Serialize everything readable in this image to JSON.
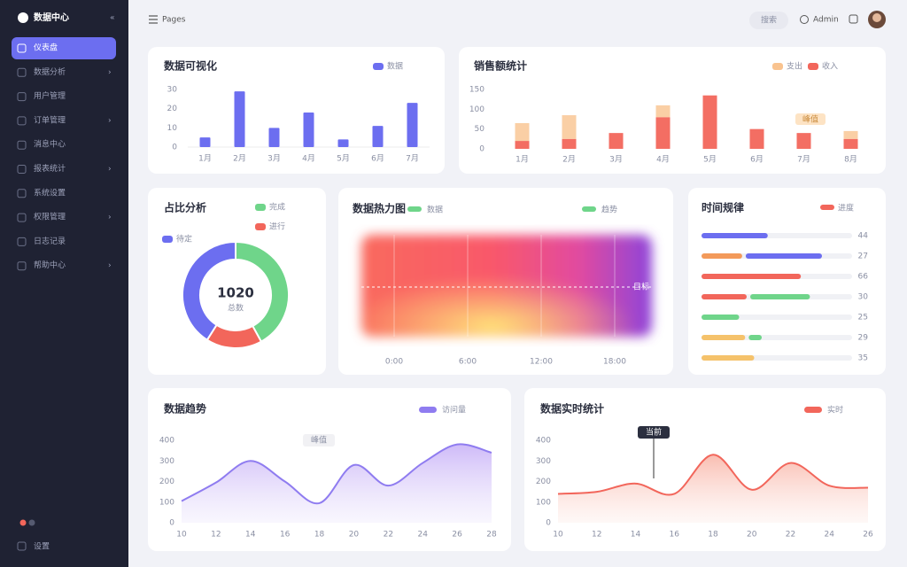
{
  "sidebar": {
    "brand": "数据中心",
    "items": [
      "仪表盘",
      "数据分析",
      "用户管理",
      "订单管理",
      "消息中心",
      "报表统计",
      "系统设置",
      "权限管理",
      "日志记录",
      "帮助中心"
    ],
    "footer": "设置"
  },
  "header": {
    "title": "Pages",
    "search": "搜索",
    "user": "Admin"
  },
  "bar_card": {
    "type": "bar",
    "title": "数据可视化",
    "legend": "数据",
    "categories": [
      "1月",
      "2月",
      "3月",
      "4月",
      "5月",
      "6月",
      "7月"
    ],
    "values": [
      5,
      29,
      10,
      18,
      4,
      11,
      23
    ],
    "color": "#6c6ef0",
    "ylim": [
      0,
      30
    ],
    "yticks": [
      0,
      10,
      20,
      30
    ]
  },
  "stack_card": {
    "type": "stacked-bar",
    "title": "销售额统计",
    "categories": [
      "1月",
      "2月",
      "3月",
      "4月",
      "5月",
      "6月",
      "7月",
      "8月"
    ],
    "series": [
      {
        "name": "收入",
        "color": "#f2665b",
        "values": [
          20,
          25,
          40,
          80,
          135,
          50,
          40,
          25
        ]
      },
      {
        "name": "支出",
        "color": "#f9c38f",
        "values": [
          45,
          60,
          0,
          30,
          0,
          0,
          0,
          20
        ]
      }
    ],
    "ylim": [
      0,
      150
    ],
    "yticks": [
      0,
      50,
      100,
      150
    ],
    "annotation": "峰值"
  },
  "donut_card": {
    "type": "donut",
    "title": "占比分析",
    "total": "1020",
    "total_label": "总数",
    "series": [
      {
        "name": "完成",
        "color": "#6fd58a",
        "value": 42
      },
      {
        "name": "进行",
        "color": "#f2665b",
        "value": 17
      },
      {
        "name": "待定",
        "color": "#6c6ef0",
        "value": 41
      }
    ]
  },
  "heat_card": {
    "title": "数据热力图",
    "legend": [
      "数据",
      "趋势"
    ],
    "target_label": "目标",
    "categories": [
      "0:00",
      "6:00",
      "12:00",
      "18:00"
    ]
  },
  "hbar_card": {
    "type": "hbar",
    "title": "时间规律",
    "legend": "进度",
    "xlim": [
      0,
      100
    ],
    "segments": [
      {
        "values": [
          44,
          27,
          66,
          30,
          25,
          29,
          35
        ],
        "colors": [
          "#6c6ef0",
          "#f39a5a",
          "#f2665b",
          "#f2665b",
          "#6fd58a",
          "#f5c26b",
          "#f5c26b"
        ]
      },
      {
        "values": [
          0,
          53,
          0,
          42,
          0,
          11,
          0
        ],
        "colors": [
          "#6c6ef0",
          "#6c6ef0",
          "#f39a5a",
          "#6fd58a",
          "#6fd58a",
          "#6fd58a",
          "#6fd58a"
        ]
      }
    ]
  },
  "area_card": {
    "type": "area",
    "title": "数据趋势",
    "legend": "访问量",
    "color": "#8f7cf0",
    "annotation": "峰值",
    "categories": [
      "10",
      "12",
      "14",
      "16",
      "18",
      "20",
      "22",
      "24",
      "26",
      "28"
    ],
    "values": [
      105,
      195,
      300,
      200,
      95,
      280,
      180,
      290,
      380,
      340
    ],
    "ylim": [
      0,
      400
    ],
    "yticks": [
      0,
      100,
      200,
      300,
      400
    ]
  },
  "area_card2": {
    "type": "area",
    "title": "数据实时统计",
    "legend": "实时",
    "color": "#f2665b",
    "annotation": "当前",
    "categories": [
      "10",
      "12",
      "14",
      "16",
      "18",
      "20",
      "22",
      "24",
      "26"
    ],
    "values": [
      140,
      150,
      190,
      140,
      330,
      160,
      290,
      180,
      170
    ],
    "ylim": [
      0,
      400
    ],
    "yticks": [
      0,
      100,
      200,
      300,
      400
    ]
  }
}
